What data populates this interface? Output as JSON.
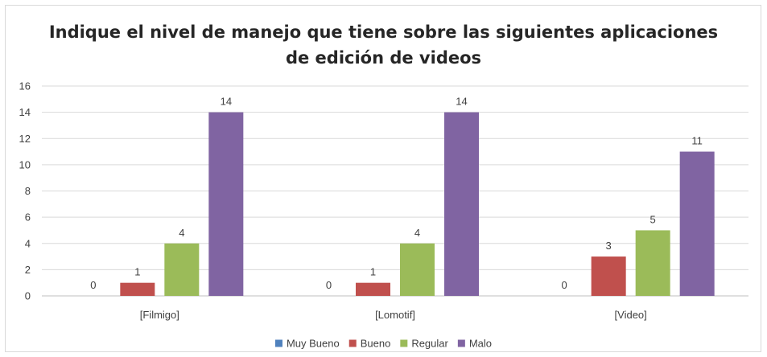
{
  "chart_data": {
    "type": "bar",
    "title_lines": [
      "Indique el nivel de manejo que tiene sobre las siguientes aplicaciones",
      "de edición de videos"
    ],
    "categories": [
      "[Filmigo]",
      "[Lomotif]",
      "[Video]"
    ],
    "series": [
      {
        "name": "Muy Bueno",
        "color": "#4f81bd",
        "values": [
          0,
          0,
          0
        ]
      },
      {
        "name": "Bueno",
        "color": "#c0504d",
        "values": [
          1,
          1,
          3
        ]
      },
      {
        "name": "Regular",
        "color": "#9bbb59",
        "values": [
          4,
          4,
          5
        ]
      },
      {
        "name": "Malo",
        "color": "#8064a2",
        "values": [
          14,
          14,
          11
        ]
      }
    ],
    "ylim": [
      0,
      16
    ],
    "yticks": [
      0,
      2,
      4,
      6,
      8,
      10,
      12,
      14,
      16
    ],
    "grid": true,
    "legend": "bottom",
    "data_labels": true
  }
}
